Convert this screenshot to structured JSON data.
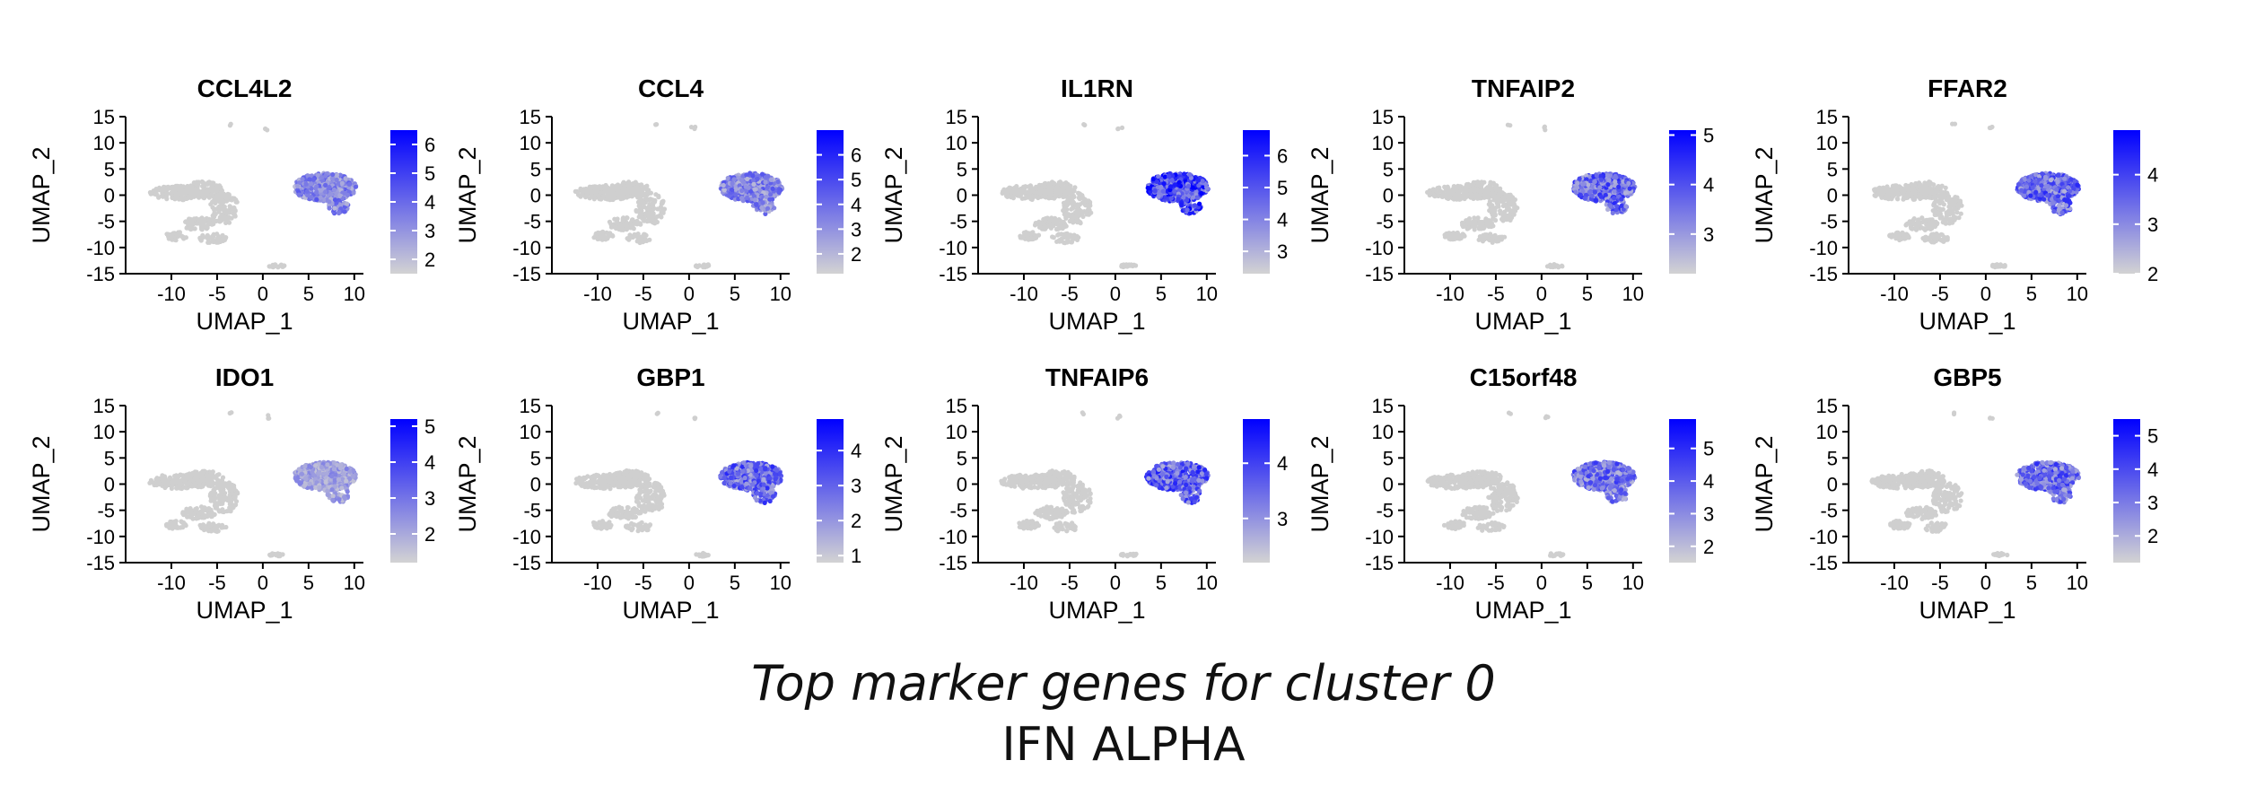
{
  "figure": {
    "caption_title": "Top marker genes for cluster 0",
    "caption_subtitle": "IFN ALPHA"
  },
  "colors": {
    "low": "#d3d3d3",
    "high": "#0000ff",
    "background_points": "#cfcfcf",
    "axis": "#000000"
  },
  "chart_data": [
    {
      "type": "scatter",
      "title": "CCL4L2",
      "xlabel": "UMAP_1",
      "ylabel": "UMAP_2",
      "xlim": [
        -15,
        11
      ],
      "ylim": [
        -15,
        15
      ],
      "xticks": [
        -10,
        -5,
        0,
        5,
        10
      ],
      "yticks": [
        -15,
        -10,
        -5,
        0,
        5,
        10,
        15
      ],
      "colorbar": {
        "min": 1.5,
        "max": 6.5,
        "ticks": [
          2,
          3,
          4,
          5,
          6
        ]
      },
      "expression_intensity": 0.45,
      "grid": false,
      "legend": "right"
    },
    {
      "type": "scatter",
      "title": "CCL4",
      "xlabel": "UMAP_1",
      "ylabel": "UMAP_2",
      "xlim": [
        -15,
        11
      ],
      "ylim": [
        -15,
        15
      ],
      "xticks": [
        -10,
        -5,
        0,
        5,
        10
      ],
      "yticks": [
        -15,
        -10,
        -5,
        0,
        5,
        10,
        15
      ],
      "colorbar": {
        "min": 1.2,
        "max": 7.0,
        "ticks": [
          2,
          3,
          4,
          5,
          6
        ]
      },
      "expression_intensity": 0.45,
      "grid": false,
      "legend": "right"
    },
    {
      "type": "scatter",
      "title": "IL1RN",
      "xlabel": "UMAP_1",
      "ylabel": "UMAP_2",
      "xlim": [
        -15,
        11
      ],
      "ylim": [
        -15,
        15
      ],
      "xticks": [
        -10,
        -5,
        0,
        5,
        10
      ],
      "yticks": [
        -15,
        -10,
        -5,
        0,
        5,
        10,
        15
      ],
      "colorbar": {
        "min": 2.3,
        "max": 6.8,
        "ticks": [
          3,
          4,
          5,
          6
        ]
      },
      "expression_intensity": 0.8,
      "grid": false,
      "legend": "right"
    },
    {
      "type": "scatter",
      "title": "TNFAIP2",
      "xlabel": "UMAP_1",
      "ylabel": "UMAP_2",
      "xlim": [
        -15,
        11
      ],
      "ylim": [
        -15,
        15
      ],
      "xticks": [
        -10,
        -5,
        0,
        5,
        10
      ],
      "yticks": [
        -15,
        -10,
        -5,
        0,
        5,
        10,
        15
      ],
      "colorbar": {
        "min": 2.2,
        "max": 5.1,
        "ticks": [
          3,
          4,
          5
        ]
      },
      "expression_intensity": 0.6,
      "grid": false,
      "legend": "right"
    },
    {
      "type": "scatter",
      "title": "FFAR2",
      "xlabel": "UMAP_1",
      "ylabel": "UMAP_2",
      "xlim": [
        -15,
        11
      ],
      "ylim": [
        -15,
        15
      ],
      "xticks": [
        -10,
        -5,
        0,
        5,
        10
      ],
      "yticks": [
        -15,
        -10,
        -5,
        0,
        5,
        10,
        15
      ],
      "colorbar": {
        "min": 2.0,
        "max": 4.9,
        "ticks": [
          2,
          3,
          4
        ]
      },
      "expression_intensity": 0.6,
      "grid": false,
      "legend": "right"
    },
    {
      "type": "scatter",
      "title": "IDO1",
      "xlabel": "UMAP_1",
      "ylabel": "UMAP_2",
      "xlim": [
        -15,
        11
      ],
      "ylim": [
        -15,
        15
      ],
      "xticks": [
        -10,
        -5,
        0,
        5,
        10
      ],
      "yticks": [
        -15,
        -10,
        -5,
        0,
        5,
        10,
        15
      ],
      "colorbar": {
        "min": 1.2,
        "max": 5.2,
        "ticks": [
          2,
          3,
          4,
          5
        ]
      },
      "expression_intensity": 0.3,
      "grid": false,
      "legend": "right"
    },
    {
      "type": "scatter",
      "title": "GBP1",
      "xlabel": "UMAP_1",
      "ylabel": "UMAP_2",
      "xlim": [
        -15,
        11
      ],
      "ylim": [
        -15,
        15
      ],
      "xticks": [
        -10,
        -5,
        0,
        5,
        10
      ],
      "yticks": [
        -15,
        -10,
        -5,
        0,
        5,
        10,
        15
      ],
      "colorbar": {
        "min": 0.8,
        "max": 4.9,
        "ticks": [
          1,
          2,
          3,
          4
        ]
      },
      "expression_intensity": 0.6,
      "grid": false,
      "legend": "right"
    },
    {
      "type": "scatter",
      "title": "TNFAIP6",
      "xlabel": "UMAP_1",
      "ylabel": "UMAP_2",
      "xlim": [
        -15,
        11
      ],
      "ylim": [
        -15,
        15
      ],
      "xticks": [
        -10,
        -5,
        0,
        5,
        10
      ],
      "yticks": [
        -15,
        -10,
        -5,
        0,
        5,
        10,
        15
      ],
      "colorbar": {
        "min": 2.2,
        "max": 4.8,
        "ticks": [
          3,
          4
        ]
      },
      "expression_intensity": 0.65,
      "grid": false,
      "legend": "right"
    },
    {
      "type": "scatter",
      "title": "C15orf48",
      "xlabel": "UMAP_1",
      "ylabel": "UMAP_2",
      "xlim": [
        -15,
        11
      ],
      "ylim": [
        -15,
        15
      ],
      "xticks": [
        -10,
        -5,
        0,
        5,
        10
      ],
      "yticks": [
        -15,
        -10,
        -5,
        0,
        5,
        10,
        15
      ],
      "colorbar": {
        "min": 1.5,
        "max": 5.9,
        "ticks": [
          2,
          3,
          4,
          5
        ]
      },
      "expression_intensity": 0.55,
      "grid": false,
      "legend": "right"
    },
    {
      "type": "scatter",
      "title": "GBP5",
      "xlabel": "UMAP_1",
      "ylabel": "UMAP_2",
      "xlim": [
        -15,
        11
      ],
      "ylim": [
        -15,
        15
      ],
      "xticks": [
        -10,
        -5,
        0,
        5,
        10
      ],
      "yticks": [
        -15,
        -10,
        -5,
        0,
        5,
        10,
        15
      ],
      "colorbar": {
        "min": 1.2,
        "max": 5.5,
        "ticks": [
          2,
          3,
          4,
          5
        ]
      },
      "expression_intensity": 0.6,
      "grid": false,
      "legend": "right"
    }
  ]
}
